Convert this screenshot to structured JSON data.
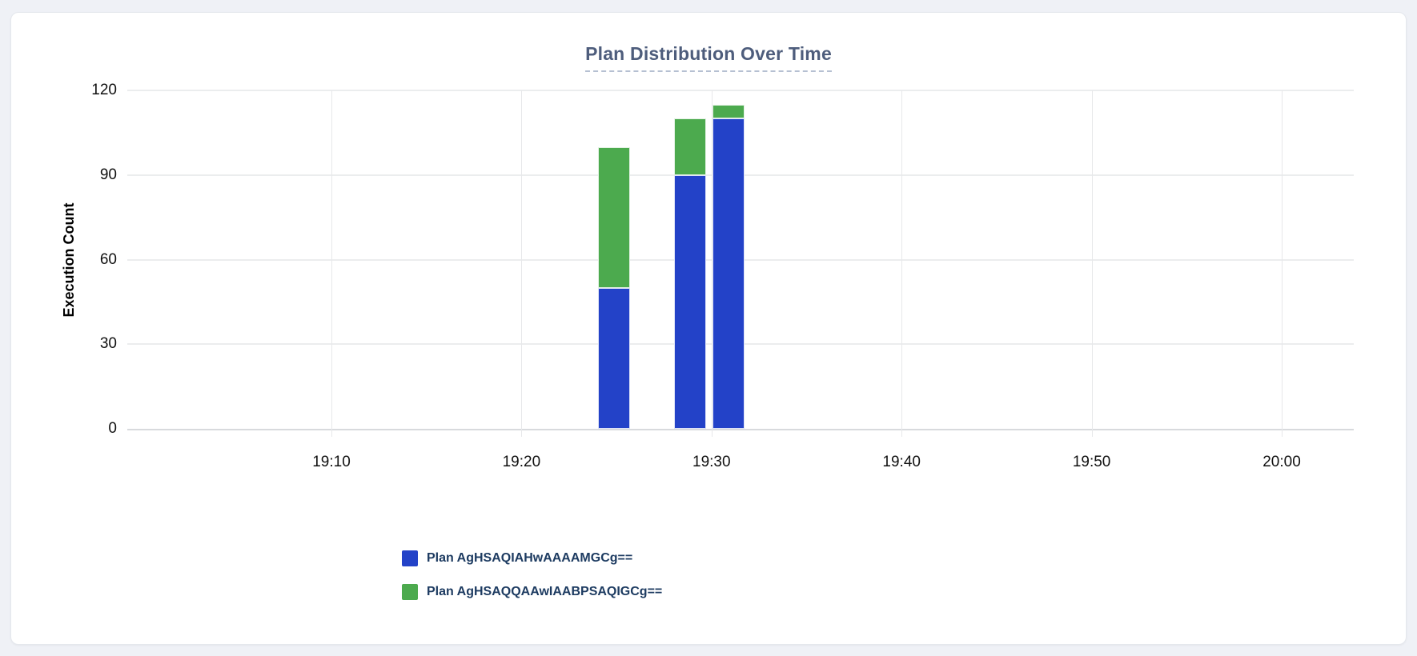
{
  "card": {
    "background": "#ffffff"
  },
  "chart_data": {
    "type": "bar",
    "stacked": true,
    "title": "Plan Distribution Over Time",
    "xlabel": "",
    "ylabel": "Execution Count",
    "ylim": [
      0,
      120
    ],
    "yticks": [
      0,
      30,
      60,
      90,
      120
    ],
    "xticks": [
      "19:10",
      "19:20",
      "19:30",
      "19:40",
      "19:50",
      "20:00"
    ],
    "grid": true,
    "legend_position": "bottom-left",
    "x": [
      "19:24",
      "19:28",
      "19:30"
    ],
    "series": [
      {
        "name": "Plan AgHSAQIAHwAAAAMGCg==",
        "color": "#2342c8",
        "values": [
          50,
          90,
          110
        ]
      },
      {
        "name": "Plan AgHSAQQAAwIAABPSAQIGCg==",
        "color": "#4caa4e",
        "values": [
          50,
          20,
          5
        ]
      }
    ],
    "colors": {
      "title": "#4e5d7c",
      "legend_text": "#1d3b61"
    }
  }
}
